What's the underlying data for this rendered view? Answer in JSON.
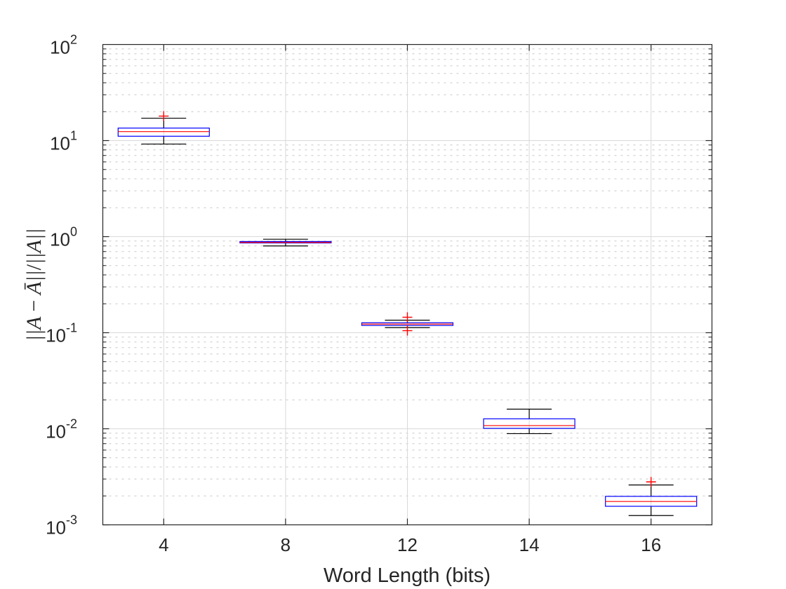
{
  "chart_data": {
    "type": "box",
    "title": "",
    "xlabel": "Word Length (bits)",
    "ylabel": "||A - Ā|| / ||A||",
    "yscale": "log",
    "ylim": [
      0.001,
      100
    ],
    "yticks": [
      "10^-3",
      "10^-2",
      "10^-1",
      "10^0",
      "10^1",
      "10^2"
    ],
    "categories": [
      "4",
      "8",
      "12",
      "14",
      "16"
    ],
    "grid": true,
    "boxes": [
      {
        "category": "4",
        "whisker_low": 9.2,
        "q1": 11.1,
        "median": 12.4,
        "q3": 13.5,
        "whisker_high": 17.1,
        "outliers": [
          18.0
        ]
      },
      {
        "category": "8",
        "whisker_low": 0.8,
        "q1": 0.86,
        "median": 0.87,
        "q3": 0.89,
        "whisker_high": 0.94,
        "outliers": []
      },
      {
        "category": "12",
        "whisker_low": 0.113,
        "q1": 0.119,
        "median": 0.123,
        "q3": 0.127,
        "whisker_high": 0.135,
        "outliers": [
          0.145,
          0.105
        ]
      },
      {
        "category": "14",
        "whisker_low": 0.0089,
        "q1": 0.0101,
        "median": 0.0108,
        "q3": 0.0127,
        "whisker_high": 0.016,
        "outliers": []
      },
      {
        "category": "16",
        "whisker_low": 0.00125,
        "q1": 0.00156,
        "median": 0.00175,
        "q3": 0.00198,
        "whisker_high": 0.0026,
        "outliers": [
          0.0028
        ]
      }
    ],
    "colors": {
      "box": "#0000ff",
      "median": "#ff0000",
      "whisker": "#000000",
      "outlier": "#ff0000",
      "grid": "#d9d9d9",
      "axis": "#262626"
    }
  },
  "labels": {
    "xlabel": "Word Length (bits)",
    "ytick_base": "10",
    "ytick_exps": [
      "2",
      "1",
      "0",
      "-1",
      "-2",
      "-3"
    ]
  }
}
